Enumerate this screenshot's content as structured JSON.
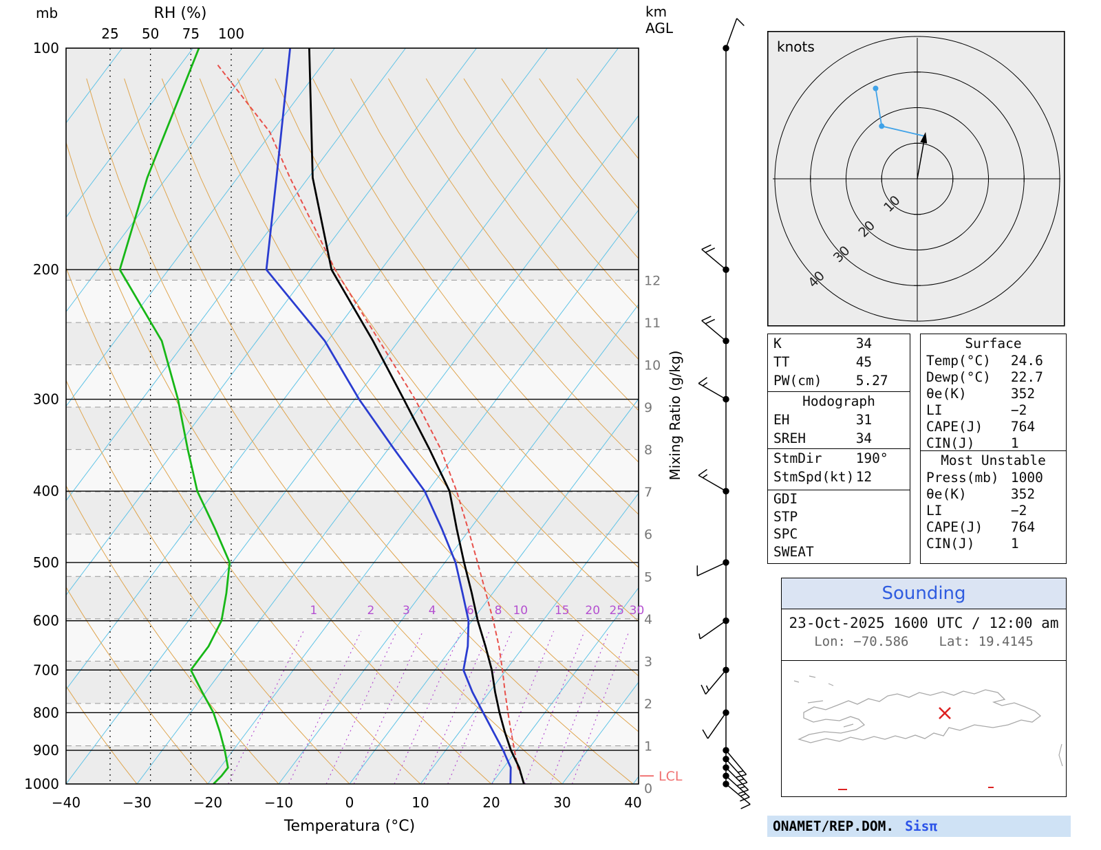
{
  "colors": {
    "temperature_line": "#000000",
    "dewpoint_line": "#2a3cd0",
    "parcel_line": "#e8504a",
    "rh_line": "#17b717",
    "isotherm": "#5fc3e6",
    "dry_adiabat": "#dfa54f",
    "mixing_ratio": "#b44fd0",
    "km_line": "#999999",
    "band_a": "#ececec",
    "band_b": "#f8f8f8",
    "hodograph_trace": "#3fa2e8",
    "lcl": "#f07070",
    "map_outline": "#a8a8a8",
    "marker_red": "#dd2222"
  },
  "skewt": {
    "pressure_axis": {
      "unit_label": "mb",
      "ticks": [
        100,
        200,
        300,
        400,
        500,
        600,
        700,
        800,
        900,
        1000
      ]
    },
    "temp_axis": {
      "label": "Temperatura (°C)",
      "ticks": [
        -40,
        -30,
        -20,
        -10,
        0,
        10,
        20,
        30,
        40
      ]
    },
    "rh_axis": {
      "label": "RH (%)",
      "ticks": [
        25,
        50,
        75,
        100
      ]
    },
    "km_axis": {
      "label_line1": "km",
      "label_line2": "AGL",
      "ticks": [
        0,
        1,
        2,
        3,
        4,
        5,
        6,
        7,
        8,
        9,
        10,
        11,
        12
      ]
    },
    "mixing_ratio_axis": {
      "label": "Mixing Ratio (g/kg)",
      "values": [
        1,
        2,
        3,
        4,
        6,
        8,
        10,
        15,
        20,
        25,
        30
      ]
    },
    "lcl": {
      "label": "LCL",
      "pressure": 975
    }
  },
  "hodograph": {
    "units_label": "knots",
    "rings": [
      10,
      20,
      30,
      40
    ]
  },
  "panels": {
    "indices": {
      "rows": [
        {
          "label": "K",
          "value": "34"
        },
        {
          "label": "TT",
          "value": "45"
        },
        {
          "label": "PW(cm)",
          "value": "5.27"
        }
      ]
    },
    "hodograph_stats": {
      "header": "Hodograph",
      "rows": [
        {
          "label": "EH",
          "value": "31"
        },
        {
          "label": "SREH",
          "value": "34"
        }
      ]
    },
    "storm": {
      "rows": [
        {
          "label": "StmDir",
          "value": "190°"
        },
        {
          "label": "StmSpd(kt)",
          "value": "12"
        }
      ]
    },
    "extra_indices": {
      "rows": [
        {
          "label": "GDI",
          "value": ""
        },
        {
          "label": "STP",
          "value": ""
        },
        {
          "label": "SPC",
          "value": ""
        },
        {
          "label": "SWEAT",
          "value": ""
        }
      ]
    },
    "surface": {
      "header": "Surface",
      "rows": [
        {
          "label": "Temp(°C)",
          "value": "24.6"
        },
        {
          "label": "Dewp(°C)",
          "value": "22.7"
        },
        {
          "label": "θe(K)",
          "value": "352"
        },
        {
          "label": "LI",
          "value": "−2"
        },
        {
          "label": "CAPE(J)",
          "value": "764"
        },
        {
          "label": "CIN(J)",
          "value": "1"
        }
      ]
    },
    "most_unstable": {
      "header": "Most Unstable",
      "rows": [
        {
          "label": "Press(mb)",
          "value": "1000"
        },
        {
          "label": "θe(K)",
          "value": "352"
        },
        {
          "label": "LI",
          "value": "−2"
        },
        {
          "label": "CAPE(J)",
          "value": "764"
        },
        {
          "label": "CIN(J)",
          "value": "1"
        }
      ]
    }
  },
  "sounding_panel": {
    "title": "Sounding",
    "datetime": "23-Oct-2025 1600 UTC / 12:00 am",
    "lon_label": "Lon: −70.586",
    "lat_label": "Lat: 19.4145"
  },
  "footer": {
    "org": "ONAMET/REP.DOM.",
    "app": "Sisπ"
  },
  "chart_data": {
    "type": "line",
    "title": "Skew-T log-P sounding, 23-Oct-2025 1600 UTC",
    "xlabel": "Temperatura (°C)",
    "ylabel": "mb",
    "x_range": [
      -40,
      40
    ],
    "pressure_range": [
      100,
      1000
    ],
    "pressure_mb": [
      1000,
      950,
      900,
      850,
      800,
      750,
      700,
      650,
      600,
      550,
      500,
      450,
      400,
      350,
      300,
      250,
      200,
      150,
      100
    ],
    "series": [
      {
        "name": "temperature_c",
        "values": [
          24.6,
          22.2,
          19.2,
          16.4,
          13.6,
          10.8,
          8.0,
          4.6,
          0.8,
          -3.0,
          -7.3,
          -11.9,
          -16.9,
          -24.3,
          -33.1,
          -43.6,
          -57.0,
          -69.4,
          -83.6
        ]
      },
      {
        "name": "dewpoint_c",
        "values": [
          22.7,
          21.0,
          18.1,
          14.8,
          11.3,
          7.6,
          4.0,
          2.1,
          -0.5,
          -4.3,
          -8.5,
          -14.0,
          -20.4,
          -29.3,
          -39.4,
          -50.4,
          -66.2,
          -74.5,
          -86.3
        ]
      }
    ],
    "parcel_profile": {
      "pressure_mb": [
        1000,
        975,
        950,
        900,
        850,
        800,
        750,
        700,
        650,
        600,
        550,
        500,
        450,
        400,
        350,
        300,
        250,
        200,
        150,
        130,
        105
      ],
      "temp_c": [
        24.6,
        23.4,
        22.0,
        19.7,
        17.3,
        14.8,
        12.2,
        9.5,
        6.5,
        3.0,
        -1.0,
        -5.4,
        -10.3,
        -15.9,
        -22.7,
        -31.5,
        -42.7,
        -56.5,
        -72.6,
        -80.3,
        -95.0
      ]
    },
    "relative_humidity": {
      "pressure_mb": [
        1000,
        975,
        950,
        925,
        900,
        850,
        800,
        750,
        700,
        650,
        600,
        550,
        500,
        450,
        400,
        350,
        300,
        250,
        200,
        150,
        100
      ],
      "rh_pct": [
        89,
        94,
        98,
        97,
        96,
        93,
        89,
        82,
        75,
        86,
        94,
        97,
        99,
        90,
        79,
        73,
        67,
        57,
        31,
        48,
        80
      ]
    },
    "wind_barbs": [
      {
        "p": 1000,
        "dir": 130,
        "kt": 12
      },
      {
        "p": 975,
        "dir": 132,
        "kt": 15
      },
      {
        "p": 950,
        "dir": 135,
        "kt": 15
      },
      {
        "p": 925,
        "dir": 138,
        "kt": 18
      },
      {
        "p": 900,
        "dir": 140,
        "kt": 18
      },
      {
        "p": 800,
        "dir": 215,
        "kt": 10
      },
      {
        "p": 700,
        "dir": 220,
        "kt": 15
      },
      {
        "p": 600,
        "dir": 235,
        "kt": 8
      },
      {
        "p": 500,
        "dir": 245,
        "kt": 10
      },
      {
        "p": 400,
        "dir": 300,
        "kt": 15
      },
      {
        "p": 300,
        "dir": 300,
        "kt": 15
      },
      {
        "p": 250,
        "dir": 310,
        "kt": 20
      },
      {
        "p": 200,
        "dir": 310,
        "kt": 20
      },
      {
        "p": 100,
        "dir": 20,
        "kt": 10
      }
    ],
    "hodograph_trace_kt": [
      {
        "u": -11.7,
        "v": 25.4
      },
      {
        "u": -10.0,
        "v": 14.8
      },
      {
        "u": 2.0,
        "v": 12.0
      }
    ],
    "storm_motion": {
      "dir_deg": 190,
      "speed_kt": 12,
      "u": 2.1,
      "v": 11.8
    }
  }
}
